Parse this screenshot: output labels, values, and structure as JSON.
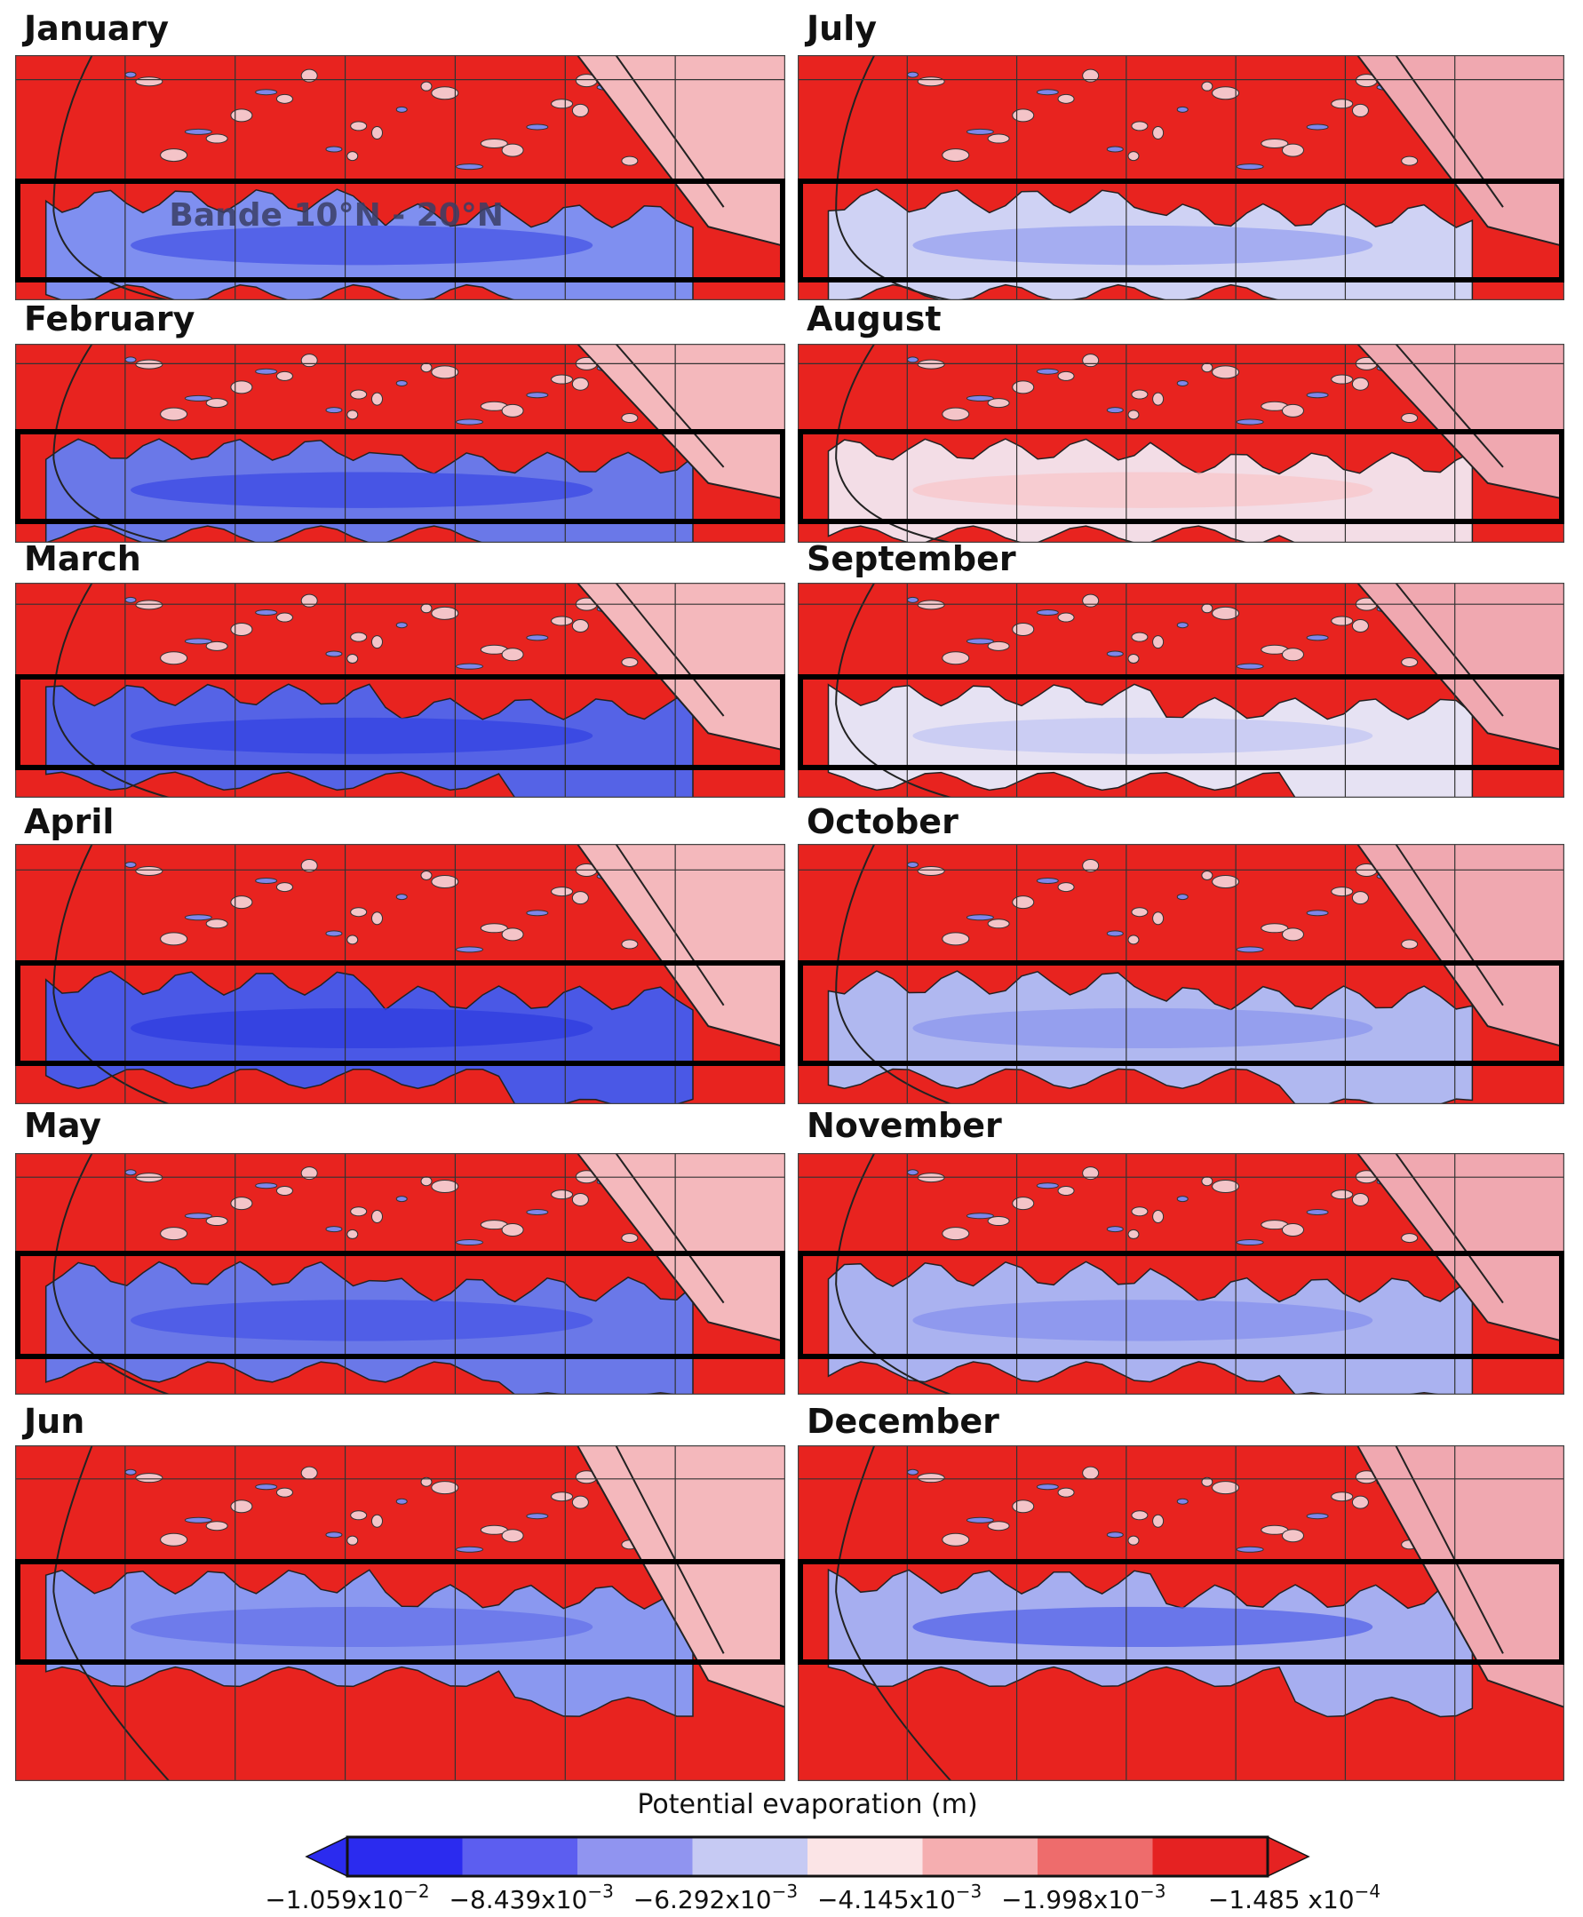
{
  "panels": [
    {
      "title": "January"
    },
    {
      "title": "July"
    },
    {
      "title": "February"
    },
    {
      "title": "August"
    },
    {
      "title": "March"
    },
    {
      "title": "September"
    },
    {
      "title": "April"
    },
    {
      "title": "October"
    },
    {
      "title": "May"
    },
    {
      "title": "November"
    },
    {
      "title": "Jun"
    },
    {
      "title": "December"
    }
  ],
  "annotation": "Bande 10°N - 20°N",
  "colorbar": {
    "title": "Potential evaporation (m)",
    "colors": [
      "#2b2bef",
      "#5c5ef0",
      "#9094f0",
      "#c6caf3",
      "#fbe4e6",
      "#f5aeb0",
      "#ee6c6c",
      "#e52222"
    ],
    "ticks": [
      {
        "text": "−1.059x10",
        "sup": "−2"
      },
      {
        "text": "−8.439x10",
        "sup": "−3"
      },
      {
        "text": "−6.292x10",
        "sup": "−3"
      },
      {
        "text": "−4.145x10",
        "sup": "−3"
      },
      {
        "text": "−1.998x10",
        "sup": "−3"
      },
      {
        "text": "−1.485 x10",
        "sup": "−4"
      }
    ]
  }
}
